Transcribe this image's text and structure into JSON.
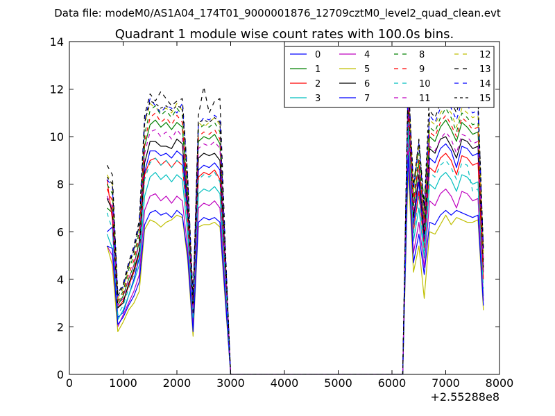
{
  "figure": {
    "suptitle": "Data file: modeM0/AS1A04_174T01_9000001876_12709cztM0_level2_quad_clean.evt",
    "offset_label": "+2.55288e8"
  },
  "chart_data": {
    "type": "line",
    "title": "Quadrant 1 module wise count rates with 100.0s bins.",
    "xlabel": "",
    "ylabel": "",
    "xlim": [
      0,
      8000
    ],
    "ylim": [
      0,
      14
    ],
    "x_offset": 255288000,
    "xticks": [
      0,
      1000,
      2000,
      3000,
      4000,
      5000,
      6000,
      7000,
      8000
    ],
    "yticks": [
      0,
      2,
      4,
      6,
      8,
      10,
      12,
      14
    ],
    "grid": false,
    "legend_position": "top-right",
    "legend_columns": 4,
    "x": [
      700,
      800,
      900,
      1000,
      1100,
      1200,
      1300,
      1400,
      1500,
      1600,
      1700,
      1800,
      1900,
      2000,
      2100,
      2200,
      2300,
      2400,
      2500,
      2600,
      2700,
      2800,
      2900,
      3000,
      3100,
      6200,
      6300,
      6400,
      6500,
      6600,
      6700,
      6800,
      6900,
      7000,
      7100,
      7200,
      7300,
      7400,
      7500,
      7600,
      7700
    ],
    "series": [
      {
        "name": "0",
        "color": "#0000ff",
        "dash": "solid",
        "values": [
          6.0,
          6.2,
          2.4,
          2.6,
          3.3,
          4.0,
          4.9,
          8.5,
          9.4,
          9.4,
          9.2,
          9.3,
          9.1,
          9.4,
          9.2,
          6.8,
          2.5,
          8.6,
          8.8,
          8.7,
          8.9,
          8.6,
          4.3,
          0,
          0,
          0,
          11.3,
          6.3,
          8.1,
          5.6,
          9.1,
          8.9,
          9.5,
          9.7,
          9.4,
          8.7,
          9.6,
          9.5,
          9.2,
          9.3,
          4.3
        ]
      },
      {
        "name": "1",
        "color": "#008000",
        "dash": "solid",
        "values": [
          7.0,
          6.8,
          2.9,
          3.3,
          4.0,
          4.6,
          5.6,
          9.6,
          10.5,
          10.7,
          10.4,
          10.6,
          10.3,
          10.6,
          10.4,
          7.5,
          2.8,
          9.8,
          10.0,
          9.9,
          10.1,
          9.7,
          4.9,
          0,
          0,
          0,
          12.0,
          7.1,
          8.9,
          6.3,
          10.0,
          9.8,
          10.4,
          10.7,
          10.3,
          9.8,
          10.6,
          10.4,
          10.1,
          10.2,
          4.8
        ]
      },
      {
        "name": "2",
        "color": "#ff0000",
        "dash": "solid",
        "values": [
          8.2,
          6.5,
          2.8,
          3.1,
          3.7,
          4.3,
          5.1,
          8.4,
          9.0,
          9.1,
          8.8,
          9.0,
          8.7,
          9.0,
          8.8,
          6.4,
          2.4,
          8.3,
          8.5,
          8.4,
          8.6,
          8.2,
          4.1,
          0,
          0,
          0,
          10.8,
          6.0,
          7.7,
          5.3,
          8.7,
          8.5,
          9.1,
          9.3,
          9.0,
          8.4,
          9.2,
          9.1,
          8.8,
          8.9,
          4.0
        ]
      },
      {
        "name": "3",
        "color": "#00bfbf",
        "dash": "solid",
        "values": [
          5.9,
          5.3,
          2.3,
          2.7,
          3.3,
          3.9,
          4.6,
          7.5,
          8.3,
          8.5,
          8.2,
          8.4,
          8.1,
          8.4,
          8.2,
          5.9,
          2.2,
          7.6,
          7.8,
          7.7,
          7.9,
          7.6,
          3.7,
          0,
          0,
          0,
          10.3,
          5.6,
          7.0,
          4.9,
          8.0,
          7.8,
          8.3,
          8.5,
          8.2,
          7.7,
          8.4,
          8.3,
          8.0,
          8.1,
          3.3
        ]
      },
      {
        "name": "4",
        "color": "#bf00bf",
        "dash": "solid",
        "values": [
          5.4,
          5.0,
          2.0,
          2.5,
          3.0,
          3.5,
          4.2,
          6.9,
          7.5,
          7.6,
          7.3,
          7.5,
          7.2,
          7.5,
          7.3,
          5.3,
          2.0,
          7.0,
          7.2,
          7.1,
          7.3,
          7.0,
          3.4,
          0,
          0,
          0,
          9.7,
          5.1,
          6.4,
          4.5,
          7.3,
          7.1,
          7.6,
          7.8,
          7.5,
          7.0,
          7.7,
          7.6,
          7.3,
          7.4,
          3.1
        ]
      },
      {
        "name": "5",
        "color": "#bfbf00",
        "dash": "solid",
        "values": [
          5.4,
          4.6,
          1.8,
          2.2,
          2.7,
          3.0,
          3.5,
          6.1,
          6.5,
          6.4,
          6.2,
          6.4,
          6.5,
          6.7,
          6.6,
          4.8,
          1.6,
          6.2,
          6.3,
          6.3,
          6.4,
          6.2,
          3.0,
          0,
          0,
          0,
          8.6,
          4.3,
          5.4,
          3.2,
          6.0,
          5.9,
          6.3,
          6.7,
          6.3,
          6.6,
          6.5,
          6.4,
          6.4,
          6.5,
          2.7
        ]
      },
      {
        "name": "6",
        "color": "#000000",
        "dash": "solid",
        "values": [
          7.4,
          6.9,
          2.8,
          3.0,
          3.8,
          4.4,
          5.2,
          8.9,
          9.8,
          9.8,
          9.6,
          9.6,
          9.5,
          9.9,
          9.7,
          7.1,
          2.6,
          9.1,
          9.3,
          9.2,
          9.3,
          9.0,
          4.6,
          0,
          0,
          0,
          11.6,
          6.6,
          8.4,
          5.9,
          9.5,
          9.3,
          9.9,
          10.0,
          9.6,
          9.1,
          9.9,
          9.8,
          9.5,
          9.6,
          4.5
        ]
      },
      {
        "name": "7",
        "color": "#0000ff",
        "dash": "solid",
        "values": [
          5.4,
          5.3,
          2.1,
          2.4,
          2.9,
          3.3,
          3.9,
          6.3,
          6.8,
          6.9,
          6.7,
          6.8,
          6.6,
          6.9,
          6.7,
          5.0,
          1.8,
          6.4,
          6.6,
          6.5,
          6.6,
          6.4,
          3.2,
          0,
          0,
          0,
          9.2,
          4.7,
          5.9,
          4.2,
          6.4,
          6.3,
          6.7,
          6.9,
          6.7,
          6.9,
          6.8,
          6.7,
          6.6,
          6.7,
          2.9
        ]
      },
      {
        "name": "8",
        "color": "#008000",
        "dash": "dashed",
        "values": [
          8.0,
          7.6,
          3.1,
          3.5,
          4.4,
          5.0,
          6.0,
          10.1,
          11.1,
          11.3,
          10.9,
          11.1,
          10.8,
          11.2,
          10.9,
          7.9,
          3.0,
          10.3,
          10.5,
          10.4,
          10.6,
          10.2,
          5.1,
          0,
          0,
          0,
          12.2,
          7.4,
          9.3,
          6.6,
          10.4,
          10.2,
          10.8,
          11.2,
          10.8,
          10.2,
          11.0,
          10.8,
          10.5,
          10.6,
          5.0
        ]
      },
      {
        "name": "9",
        "color": "#ff0000",
        "dash": "dashed",
        "values": [
          7.8,
          7.3,
          3.0,
          3.4,
          4.2,
          4.8,
          5.8,
          9.8,
          10.8,
          11.0,
          10.6,
          10.8,
          10.5,
          10.9,
          10.6,
          7.7,
          2.9,
          10.0,
          10.2,
          10.1,
          10.3,
          9.9,
          5.0,
          0,
          0,
          0,
          12.0,
          7.2,
          9.0,
          6.4,
          10.2,
          10.0,
          10.6,
          10.9,
          10.5,
          10.0,
          10.8,
          10.6,
          10.3,
          10.4,
          4.9
        ]
      },
      {
        "name": "10",
        "color": "#00bfbf",
        "dash": "dashed",
        "values": [
          6.8,
          6.1,
          2.5,
          2.9,
          3.6,
          4.2,
          5.0,
          8.2,
          8.9,
          9.1,
          8.8,
          9.0,
          8.7,
          9.0,
          8.8,
          6.4,
          2.3,
          8.2,
          8.4,
          8.3,
          8.5,
          8.1,
          4.0,
          0,
          0,
          0,
          10.6,
          5.9,
          7.5,
          5.2,
          8.5,
          8.3,
          8.8,
          9.0,
          8.7,
          8.2,
          8.9,
          8.8,
          7.7,
          7.8,
          3.6
        ]
      },
      {
        "name": "11",
        "color": "#bf00bf",
        "dash": "dashed",
        "values": [
          7.5,
          7.0,
          2.9,
          3.2,
          4.0,
          4.6,
          5.5,
          9.3,
          10.2,
          10.3,
          10.0,
          10.2,
          9.9,
          10.3,
          10.0,
          7.3,
          2.7,
          9.5,
          9.7,
          9.6,
          9.8,
          9.5,
          4.7,
          0,
          0,
          0,
          11.5,
          6.8,
          8.6,
          6.1,
          9.6,
          9.4,
          9.9,
          10.2,
          9.9,
          9.3,
          10.1,
          10.0,
          9.7,
          9.8,
          4.6
        ]
      },
      {
        "name": "12",
        "color": "#bfbf00",
        "dash": "dashed",
        "values": [
          8.4,
          8.0,
          3.2,
          3.6,
          4.5,
          5.2,
          6.2,
          10.5,
          11.4,
          11.2,
          11.1,
          11.2,
          11.0,
          11.4,
          11.1,
          8.1,
          3.1,
          10.6,
          10.4,
          10.6,
          10.8,
          10.5,
          5.2,
          0,
          0,
          0,
          12.3,
          7.6,
          9.6,
          6.8,
          10.7,
          10.5,
          11.0,
          11.3,
          11.0,
          10.4,
          11.2,
          11.0,
          10.8,
          10.9,
          5.1
        ]
      },
      {
        "name": "13",
        "color": "#000000",
        "dash": "dashed",
        "values": [
          8.8,
          8.4,
          3.4,
          3.8,
          4.7,
          5.4,
          6.5,
          10.9,
          11.8,
          11.5,
          11.9,
          11.6,
          11.3,
          11.5,
          11.6,
          8.4,
          3.2,
          10.9,
          12.1,
          11.0,
          11.5,
          11.6,
          5.4,
          0,
          0,
          0,
          12.6,
          7.9,
          9.9,
          7.1,
          11.1,
          10.8,
          11.4,
          11.8,
          11.5,
          11.0,
          11.9,
          11.6,
          11.3,
          11.4,
          5.3
        ]
      },
      {
        "name": "14",
        "color": "#0000ff",
        "dash": "dashed",
        "values": [
          8.2,
          7.9,
          3.3,
          3.7,
          4.6,
          5.3,
          6.3,
          10.7,
          11.6,
          11.3,
          11.0,
          11.3,
          11.2,
          11.0,
          11.4,
          8.3,
          3.1,
          10.5,
          10.8,
          10.7,
          10.9,
          10.7,
          5.3,
          0,
          0,
          0,
          12.4,
          7.8,
          9.7,
          6.9,
          10.9,
          10.6,
          11.2,
          11.6,
          11.2,
          10.7,
          11.5,
          11.3,
          11.0,
          11.1,
          5.2
        ]
      },
      {
        "name": "15",
        "color": "#000000",
        "dash": "dotted",
        "values": [
          8.3,
          8.0,
          3.3,
          3.7,
          4.6,
          5.2,
          6.3,
          10.6,
          11.5,
          11.4,
          11.2,
          11.3,
          11.1,
          11.3,
          11.2,
          8.2,
          3.1,
          10.6,
          10.7,
          10.6,
          10.8,
          10.6,
          5.2,
          0,
          0,
          0,
          12.5,
          7.9,
          9.8,
          7.0,
          12.0,
          11.7,
          11.6,
          12.0,
          11.8,
          11.4,
          12.0,
          11.9,
          12.0,
          11.6,
          5.2
        ]
      }
    ]
  }
}
